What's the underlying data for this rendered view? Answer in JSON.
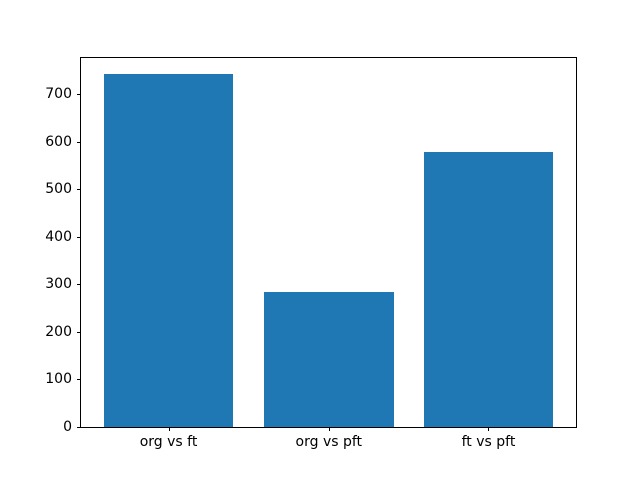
{
  "figure": {
    "background_color": "#ffffff",
    "title": ""
  },
  "chart_data": {
    "type": "bar",
    "categories": [
      "org vs ft",
      "org vs pft",
      "ft vs pft"
    ],
    "values": [
      742,
      284,
      578
    ],
    "title": "",
    "xlabel": "",
    "ylabel": "",
    "ylim": [
      0,
      776
    ],
    "yticks": [
      0,
      100,
      200,
      300,
      400,
      500,
      600,
      700
    ],
    "bar_color": "#1f77b4",
    "bar_width_fraction": 0.262,
    "bar_center_fractions": [
      0.1768,
      0.5006,
      0.8232
    ],
    "grid": false,
    "legend": false,
    "spines": "all"
  }
}
